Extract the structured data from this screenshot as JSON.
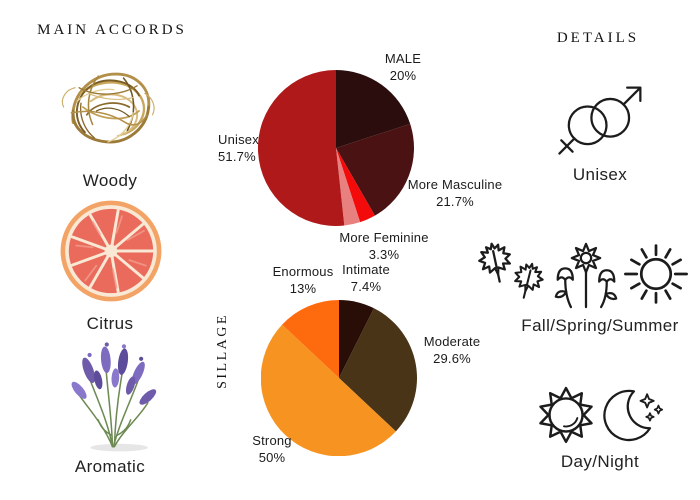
{
  "left": {
    "header": "MAIN ACCORDS",
    "accords": [
      {
        "label": "Woody",
        "icon": "vetiver-nest-photo"
      },
      {
        "label": "Citrus",
        "icon": "grapefruit-half-photo"
      },
      {
        "label": "Aromatic",
        "icon": "lavender-bunch-photo"
      }
    ]
  },
  "right": {
    "header": "DETAILS",
    "items": [
      {
        "label": "Unisex",
        "icons": [
          "female-male-symbol-icon"
        ]
      },
      {
        "label": "Fall/Spring/Summer",
        "icons": [
          "maple-leaves-icon",
          "flowers-icon",
          "sun-icon"
        ]
      },
      {
        "label": "Day/Night",
        "icons": [
          "day-sun-icon",
          "moon-stars-icon"
        ]
      }
    ]
  },
  "chart_data": [
    {
      "type": "pie",
      "name": "gender-votes",
      "start_angle": "12 o'clock, clockwise",
      "legend_position": "outside callouts",
      "segments": [
        {
          "label": "MALE",
          "pct_text": "20%",
          "value": 20,
          "color": "#2b0d0d"
        },
        {
          "label": "More Masculine",
          "pct_text": "21.7%",
          "value": 21.7,
          "color": "#4a1212"
        },
        {
          "label": "More Feminine",
          "pct_text": "3.3%",
          "value": 3.3,
          "color": "#f30b0b"
        },
        {
          "label": "",
          "pct_text": "",
          "value": 3.3,
          "color": "#e8807f"
        },
        {
          "label": "Unisex",
          "pct_text": "51.7%",
          "value": 51.7,
          "color": "#b01919"
        }
      ]
    },
    {
      "type": "pie",
      "name": "sillage-votes",
      "axis_label": "SILLAGE",
      "start_angle": "12 o'clock, clockwise",
      "legend_position": "outside callouts",
      "segments": [
        {
          "label": "Intimate",
          "pct_text": "7.4%",
          "value": 7.4,
          "color": "#290d07"
        },
        {
          "label": "Moderate",
          "pct_text": "29.6%",
          "value": 29.6,
          "color": "#4a3418"
        },
        {
          "label": "Strong",
          "pct_text": "50%",
          "value": 50,
          "color": "#f79421"
        },
        {
          "label": "Enormous",
          "pct_text": "13%",
          "value": 13,
          "color": "#fd6b0e"
        }
      ]
    }
  ]
}
